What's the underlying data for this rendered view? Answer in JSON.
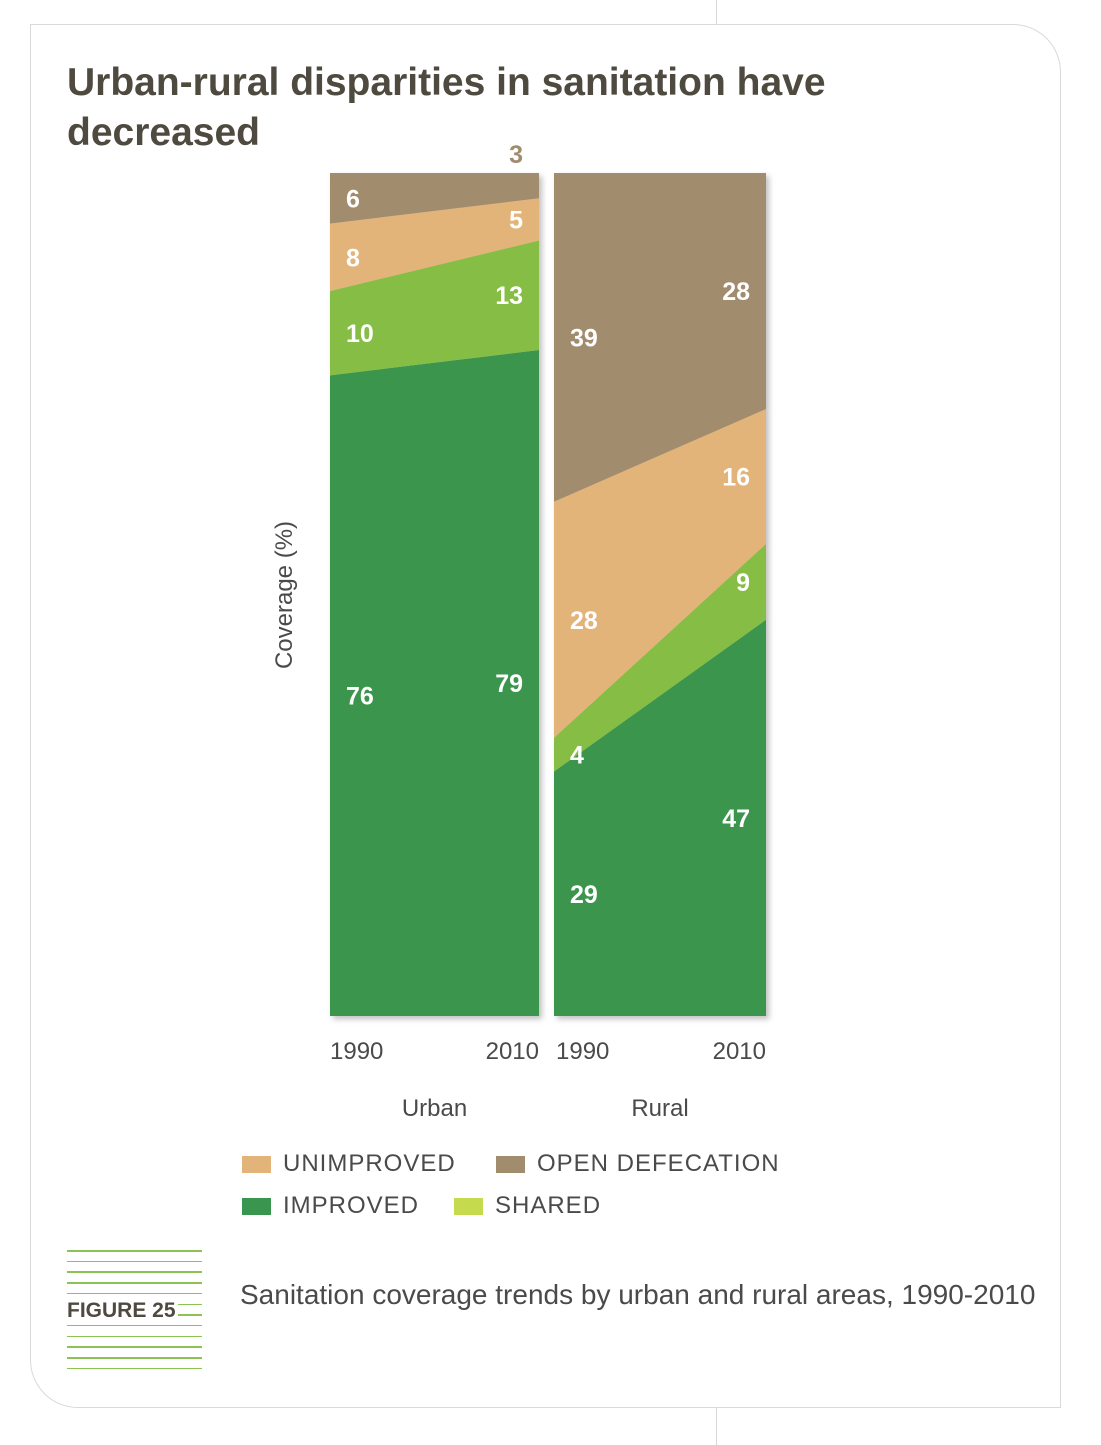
{
  "title": "Urban-rural disparities in sanitation have decreased",
  "figure_label": "FIGURE 25",
  "caption": "Sanitation coverage trends by urban and rural areas, 1990-2010",
  "colors": {
    "improved": "#3a954e",
    "shared": "#85bd45",
    "unimproved": "#e3b479",
    "open_defecation": "#a28c6e",
    "label_text": "#ffffff",
    "outside_label": "#a28c6e"
  },
  "legend": [
    {
      "key": "unimproved",
      "label": "UNIMPROVED",
      "color": "#e3b479"
    },
    {
      "key": "open_defecation",
      "label": "OPEN DEFECATION",
      "color": "#a28c6e"
    },
    {
      "key": "improved",
      "label": "IMPROVED",
      "color": "#3a954e"
    },
    {
      "key": "shared",
      "label": "SHARED",
      "color": "#c6da4d"
    }
  ],
  "chart_data": {
    "type": "area",
    "ylabel": "Coverage (%)",
    "ylim": [
      0,
      100
    ],
    "grid": false,
    "legend_position": "bottom",
    "series_order": [
      "Improved",
      "Shared",
      "Unimproved",
      "Open defecation"
    ],
    "panels": [
      {
        "name": "Urban",
        "x": [
          "1990",
          "2010"
        ],
        "series": [
          {
            "name": "Improved",
            "values": [
              76,
              79
            ]
          },
          {
            "name": "Shared",
            "values": [
              10,
              13
            ]
          },
          {
            "name": "Unimproved",
            "values": [
              8,
              5
            ]
          },
          {
            "name": "Open defecation",
            "values": [
              6,
              3
            ]
          }
        ]
      },
      {
        "name": "Rural",
        "x": [
          "1990",
          "2010"
        ],
        "series": [
          {
            "name": "Improved",
            "values": [
              29,
              47
            ]
          },
          {
            "name": "Shared",
            "values": [
              4,
              9
            ]
          },
          {
            "name": "Unimproved",
            "values": [
              28,
              16
            ]
          },
          {
            "name": "Open defecation",
            "values": [
              39,
              28
            ]
          }
        ]
      }
    ]
  }
}
